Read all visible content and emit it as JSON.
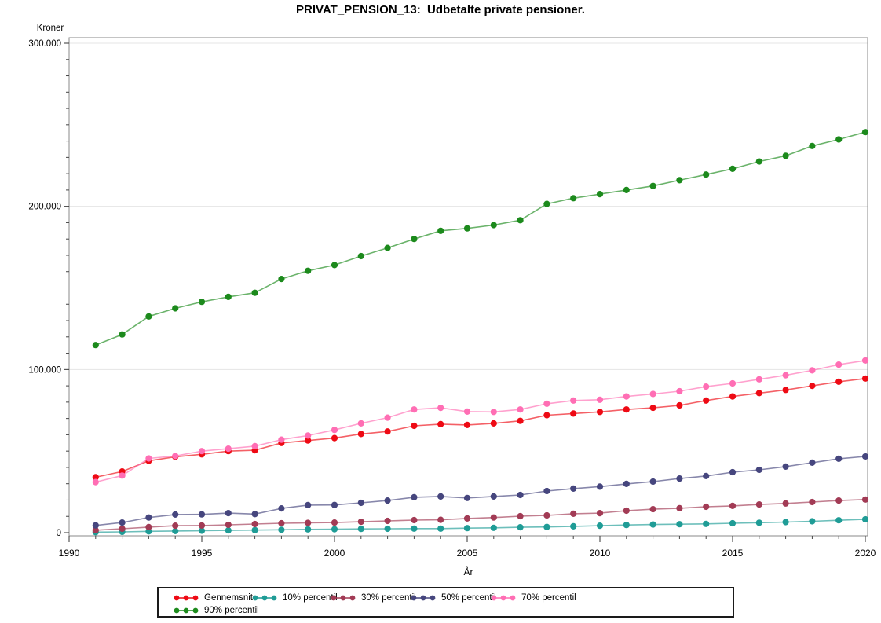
{
  "title": "PRIVAT_PENSION_13:  Udbetalte private pensioner.",
  "axes": {
    "y_label": "Kroner",
    "x_label": "År",
    "y_tick_labels": [
      "0",
      "100.000",
      "200.000",
      "300.000"
    ],
    "x_tick_labels": [
      "1990",
      "1995",
      "2000",
      "2005",
      "2010",
      "2015",
      "2020"
    ]
  },
  "legend": {
    "row1": [
      "Gennemsnit",
      "10% percentil",
      "30% percentil",
      "50% percentil",
      "70% percentil"
    ],
    "row2": [
      "90% percentil"
    ]
  },
  "chart_data": {
    "type": "line",
    "title": "PRIVAT_PENSION_13:  Udbetalte private pensioner.",
    "xlabel": "År",
    "ylabel": "Kroner",
    "xlim": [
      1990,
      2020
    ],
    "ylim": [
      0,
      300000
    ],
    "x_major_tick_values": [
      1990,
      1995,
      2000,
      2005,
      2010,
      2015,
      2020
    ],
    "x_minor_tick_step": 1,
    "y_major_tick_values": [
      0,
      100000,
      200000,
      300000
    ],
    "y_minor_tick_step": 10000,
    "grid": "horizontal-major-only",
    "legend_position": "bottom",
    "marker": "filled-circle",
    "x": [
      1991,
      1992,
      1993,
      1994,
      1995,
      1996,
      1997,
      1998,
      1999,
      2000,
      2001,
      2002,
      2003,
      2004,
      2005,
      2006,
      2007,
      2008,
      2009,
      2010,
      2011,
      2012,
      2013,
      2014,
      2015,
      2016,
      2017,
      2018,
      2019,
      2020
    ],
    "series": [
      {
        "name": "Gennemsnit",
        "color": "#EE0A14",
        "values": [
          34000,
          37500,
          44000,
          46500,
          48000,
          50000,
          50500,
          55000,
          56500,
          58000,
          60500,
          62000,
          65500,
          66500,
          66000,
          67000,
          68500,
          72000,
          73000,
          74000,
          75500,
          76500,
          78000,
          81000,
          83500,
          85500,
          87500,
          90000,
          92500,
          94500
        ]
      },
      {
        "name": "10% percentil",
        "color": "#1F9C96",
        "values": [
          300,
          500,
          800,
          1000,
          1200,
          1400,
          1600,
          1800,
          2000,
          2100,
          2300,
          2400,
          2500,
          2500,
          2800,
          3000,
          3300,
          3500,
          3900,
          4300,
          4700,
          5000,
          5200,
          5400,
          5800,
          6100,
          6500,
          7000,
          7600,
          8200
        ]
      },
      {
        "name": "30% percentil",
        "color": "#A23B55",
        "values": [
          1500,
          2400,
          3400,
          4300,
          4400,
          4800,
          5300,
          5800,
          6000,
          6200,
          6700,
          7200,
          7700,
          7900,
          8700,
          9300,
          10100,
          10600,
          11600,
          12000,
          13500,
          14400,
          15000,
          15900,
          16400,
          17300,
          17900,
          18800,
          19700,
          20300
        ]
      },
      {
        "name": "50% percentil",
        "color": "#46467E",
        "values": [
          4500,
          6200,
          9300,
          11100,
          11200,
          12000,
          11400,
          14900,
          16900,
          17000,
          18300,
          19700,
          21700,
          22200,
          21300,
          22200,
          23100,
          25500,
          27000,
          28200,
          29900,
          31300,
          33200,
          34700,
          37100,
          38500,
          40500,
          42900,
          45300,
          46700
        ]
      },
      {
        "name": "70% percentil",
        "color": "#FF6EB4",
        "values": [
          31000,
          35000,
          45500,
          47000,
          50000,
          51500,
          53000,
          57000,
          59500,
          63000,
          67000,
          70500,
          75500,
          76500,
          74200,
          74000,
          75500,
          79000,
          81000,
          81500,
          83500,
          85000,
          86700,
          89500,
          91500,
          94000,
          96500,
          99500,
          103000,
          105500
        ]
      },
      {
        "name": "90% percentil",
        "color": "#1C8A1C",
        "values": [
          115000,
          121500,
          132500,
          137500,
          141500,
          144500,
          147000,
          155500,
          160500,
          164000,
          169500,
          174500,
          180000,
          185000,
          186500,
          188500,
          191500,
          201500,
          205000,
          207500,
          210000,
          212500,
          216000,
          219500,
          223000,
          227500,
          231000,
          237000,
          241000,
          245500
        ]
      }
    ]
  }
}
